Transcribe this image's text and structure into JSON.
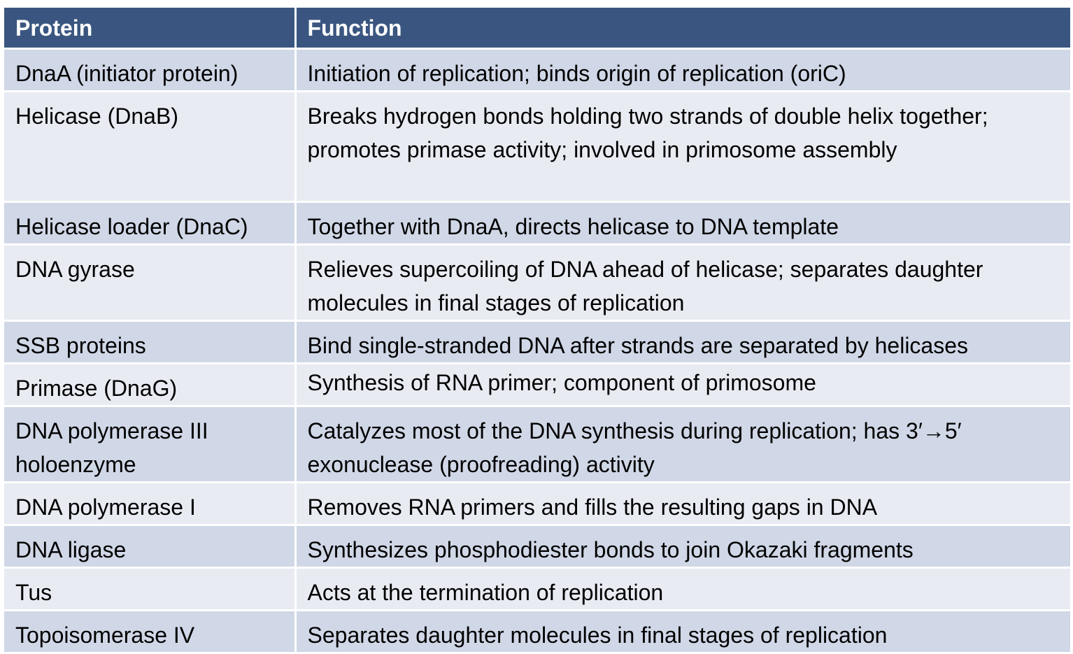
{
  "table": {
    "headers": [
      "Protein",
      "Function"
    ],
    "rows": [
      {
        "protein": "DnaA (initiator protein)",
        "function": "Initiation of replication; binds origin of replication (oriC)"
      },
      {
        "protein": "Helicase (DnaB)",
        "function": "Breaks hydrogen bonds holding two strands of double helix together; promotes primase activity; involved in primosome assembly"
      },
      {
        "protein": "Helicase loader (DnaC)",
        "function": "Together with DnaA, directs helicase to DNA template"
      },
      {
        "protein": "DNA gyrase",
        "function": "Relieves supercoiling of DNA ahead of helicase; separates daughter molecules in final stages of replication"
      },
      {
        "protein": "SSB proteins",
        "function": "Bind single-stranded DNA after strands are separated by helicases"
      },
      {
        "protein": "Primase (DnaG)",
        "function": "Synthesis of RNA primer; component of primosome"
      },
      {
        "protein": "DNA polymerase III holoenzyme",
        "function": "Catalyzes most of the DNA synthesis during replication; has 3′→5′ exonuclease (proofreading) activity"
      },
      {
        "protein": "DNA polymerase I",
        "function": "Removes RNA primers and fills the resulting gaps in DNA"
      },
      {
        "protein": "DNA ligase",
        "function": "Synthesizes phosphodiester bonds to join Okazaki fragments"
      },
      {
        "protein": "Tus",
        "function": "Acts at the termination of replication"
      },
      {
        "protein": "Topoisomerase IV",
        "function": "Separates daughter molecules in final stages of replication"
      }
    ]
  },
  "colors": {
    "header_bg": "#3a5680",
    "header_text": "#ffffff",
    "row_odd": "#d0d7e6",
    "row_even": "#e8ebf2"
  }
}
